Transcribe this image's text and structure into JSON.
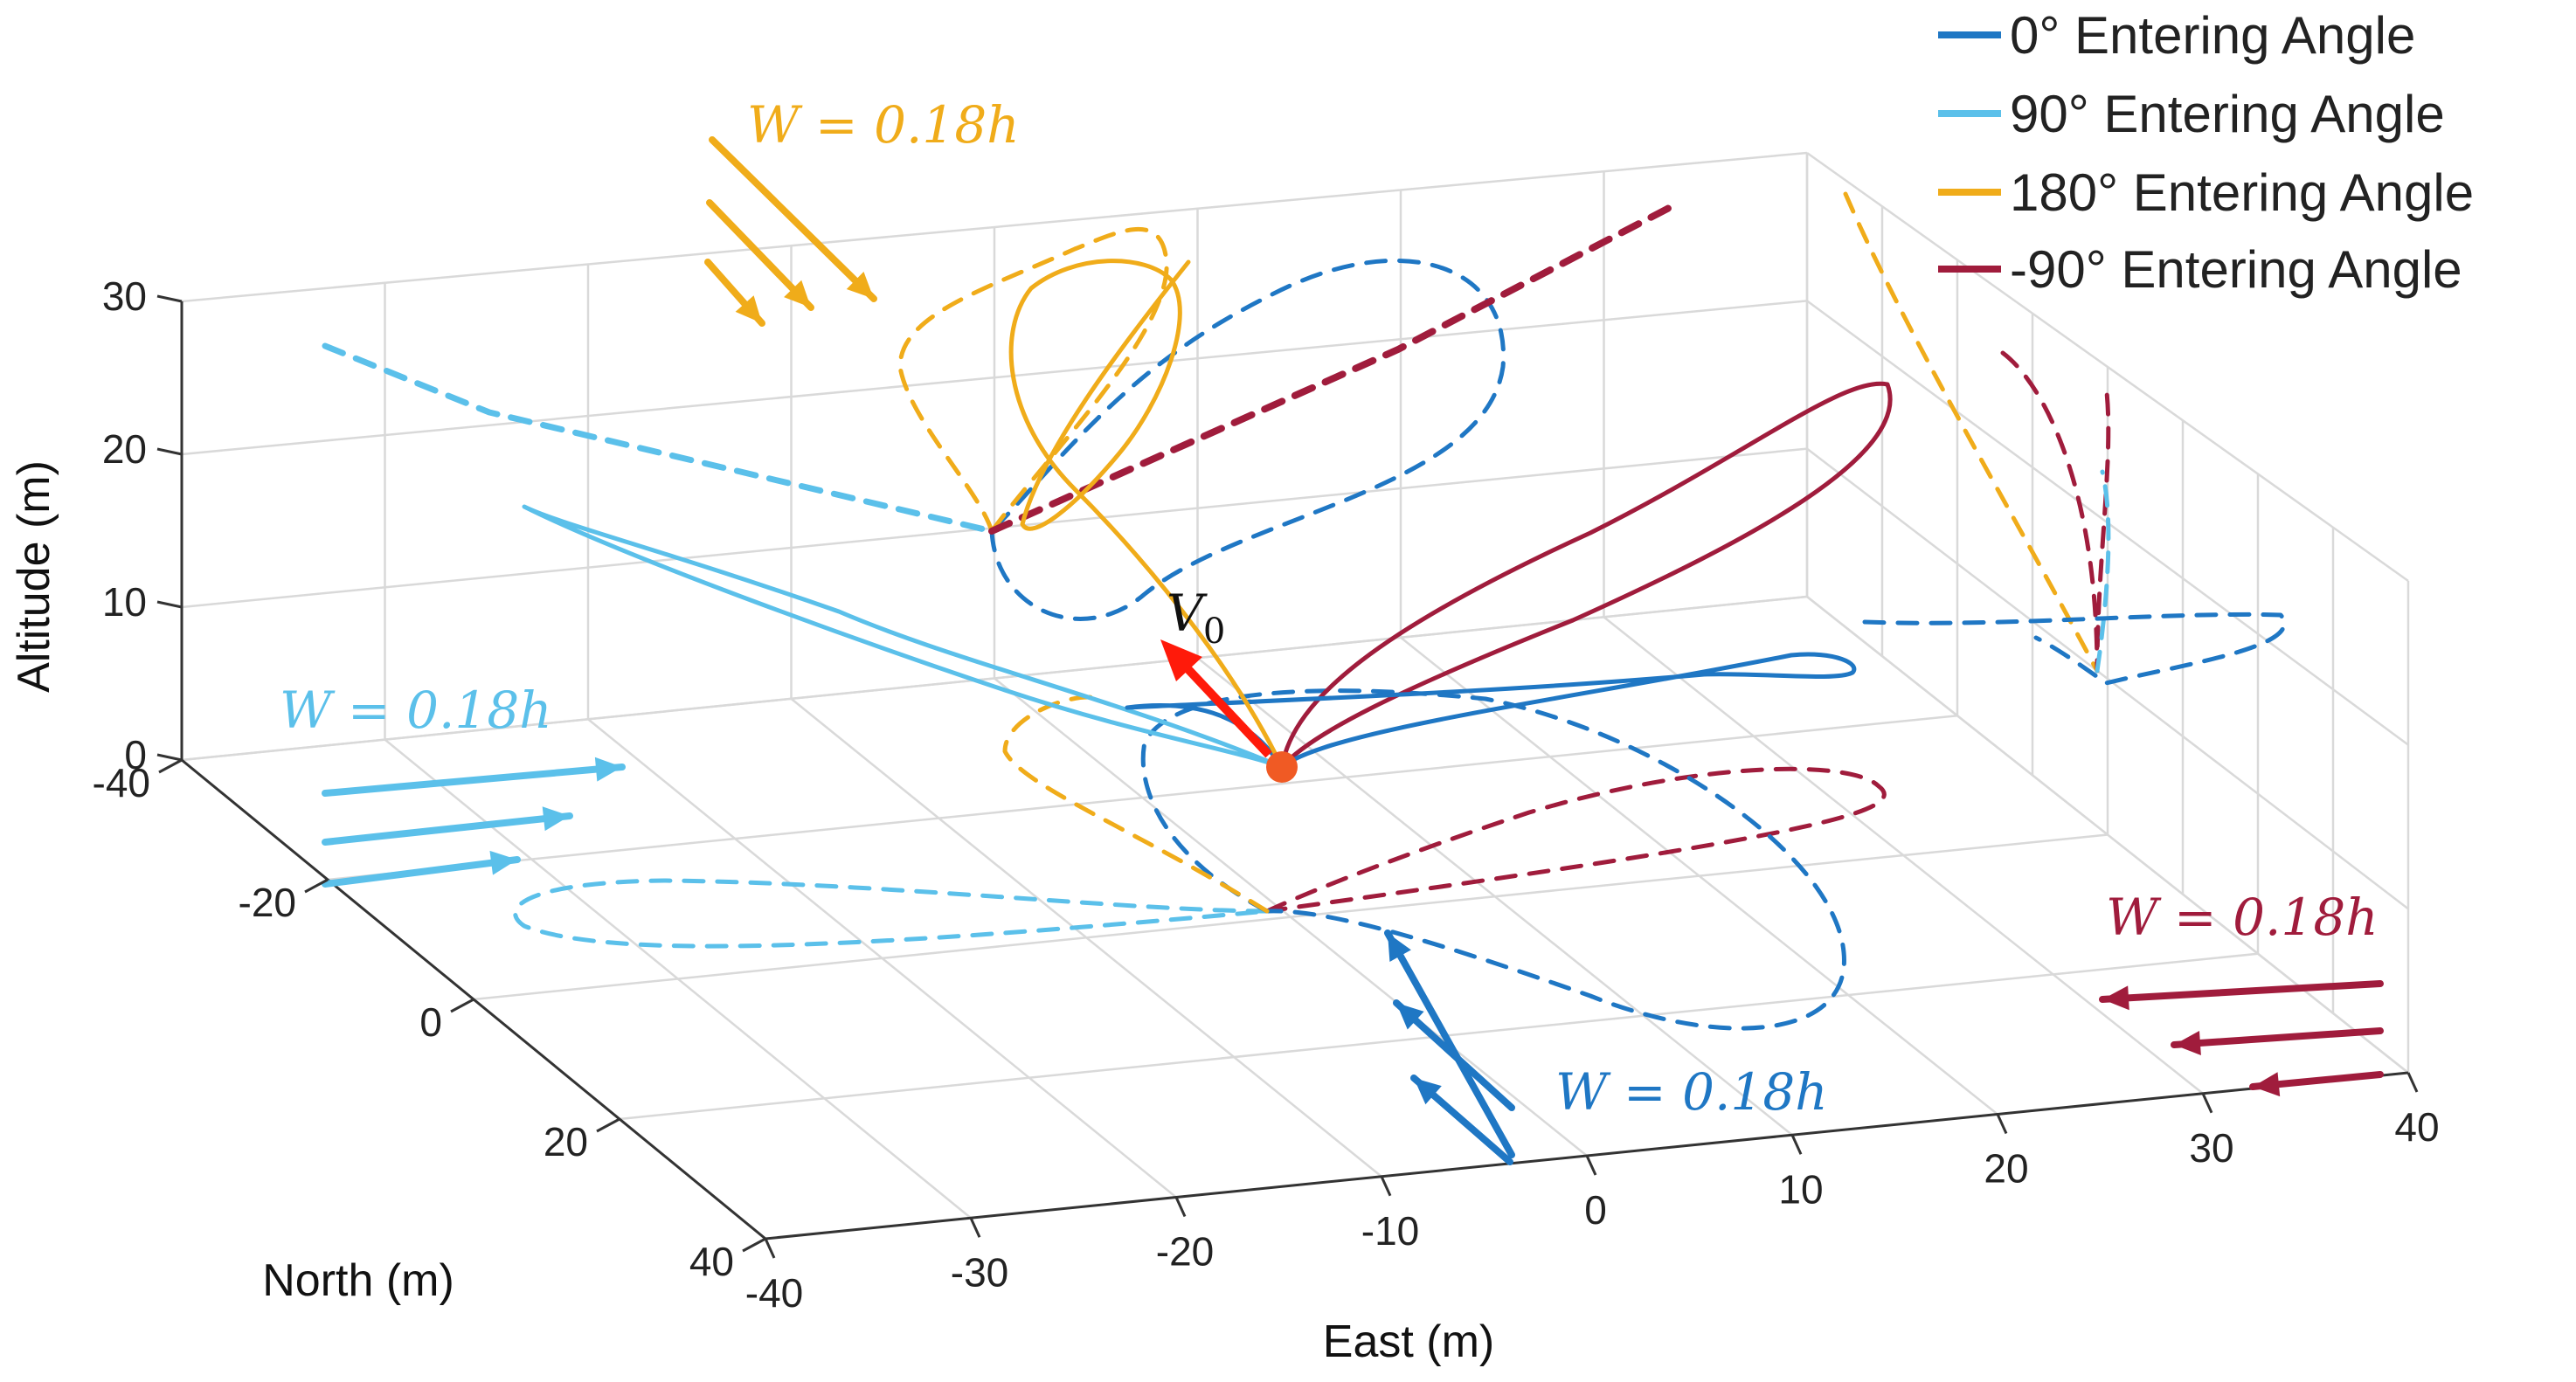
{
  "colors": {
    "s0": "#1f77c4",
    "s90": "#5bc0ea",
    "s180": "#f0ac1a",
    "sm90": "#a01c3c",
    "v0": "#ff1a0a",
    "origin": "#f05a24",
    "grid": "#d9d9d9",
    "axis": "#333333"
  },
  "chart_data": {
    "type": "line3d",
    "xlabel": "East (m)",
    "ylabel": "North (m)",
    "zlabel": "Altitude (m)",
    "xlim": [
      -40,
      40
    ],
    "ylim": [
      -40,
      40
    ],
    "zlim": [
      0,
      30
    ],
    "xticks": [
      "-40",
      "-30",
      "-20",
      "-10",
      "0",
      "10",
      "20",
      "30",
      "40"
    ],
    "yticks": [
      "-40",
      "-20",
      "0",
      "20",
      "40"
    ],
    "zticks": [
      "0",
      "10",
      "20",
      "30"
    ],
    "grid": true,
    "legend_position": "top-right",
    "series": [
      {
        "name": "0° Entering Angle",
        "color_key": "s0",
        "description": "solid trajectory with dashed projections"
      },
      {
        "name": "90° Entering Angle",
        "color_key": "s90",
        "description": "solid trajectory with dashed projections"
      },
      {
        "name": "180° Entering Angle",
        "color_key": "s180",
        "description": "solid trajectory with dashed projections"
      },
      {
        "name": "-90° Entering Angle",
        "color_key": "sm90",
        "description": "solid trajectory with dashed projections"
      }
    ],
    "annotations": {
      "initial_velocity": "V",
      "initial_velocity_sub": "0",
      "wind": [
        {
          "label": "W = 0.18h",
          "color_key": "s180"
        },
        {
          "label": "W = 0.18h",
          "color_key": "s90"
        },
        {
          "label": "W = 0.18h",
          "color_key": "s0"
        },
        {
          "label": "W = 0.18h",
          "color_key": "sm90"
        }
      ]
    }
  }
}
